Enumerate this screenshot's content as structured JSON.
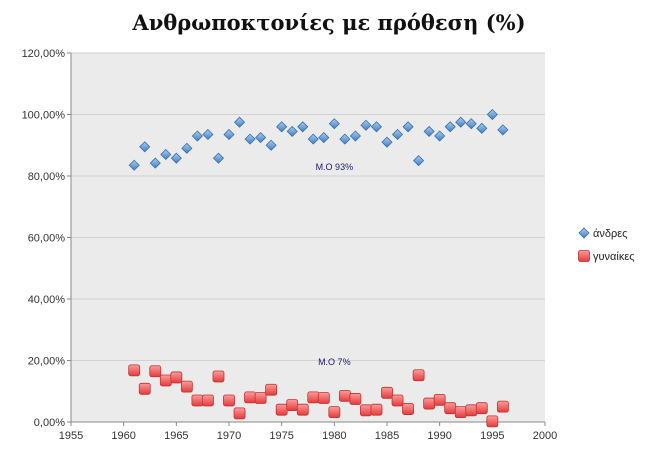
{
  "chart_data": {
    "type": "scatter",
    "title": "Ανθρωποκτονίες με πρόθεση (%)",
    "xlim": [
      1955,
      2000
    ],
    "ylim": [
      0,
      120
    ],
    "x_ticks": [
      "1955",
      "1960",
      "1965",
      "1970",
      "1975",
      "1980",
      "1985",
      "1990",
      "1995",
      "2000"
    ],
    "y_ticks": [
      "0,00%",
      "20,00%",
      "40,00%",
      "60,00%",
      "80,00%",
      "100,00%",
      "120,00%"
    ],
    "grid": true,
    "legend_position": "right",
    "series": [
      {
        "name": "άνδρες",
        "marker": "diamond",
        "color": "#5b9bd5",
        "points": [
          [
            1961,
            83.5
          ],
          [
            1962,
            89.5
          ],
          [
            1963,
            84.2
          ],
          [
            1964,
            87.0
          ],
          [
            1965,
            85.8
          ],
          [
            1966,
            89.0
          ],
          [
            1967,
            93.0
          ],
          [
            1968,
            93.5
          ],
          [
            1969,
            85.8
          ],
          [
            1970,
            93.5
          ],
          [
            1971,
            97.5
          ],
          [
            1972,
            92.0
          ],
          [
            1973,
            92.5
          ],
          [
            1974,
            90.0
          ],
          [
            1975,
            96.0
          ],
          [
            1976,
            94.5
          ],
          [
            1977,
            96.0
          ],
          [
            1978,
            92.0
          ],
          [
            1979,
            92.5
          ],
          [
            1980,
            97.0
          ],
          [
            1981,
            92.0
          ],
          [
            1982,
            93.0
          ],
          [
            1983,
            96.5
          ],
          [
            1984,
            96.0
          ],
          [
            1985,
            91.0
          ],
          [
            1986,
            93.5
          ],
          [
            1987,
            96.0
          ],
          [
            1988,
            85.0
          ],
          [
            1989,
            94.5
          ],
          [
            1990,
            93.0
          ],
          [
            1991,
            96.0
          ],
          [
            1992,
            97.5
          ],
          [
            1993,
            97.0
          ],
          [
            1994,
            95.5
          ],
          [
            1995,
            100.0
          ],
          [
            1996,
            95.0
          ]
        ]
      },
      {
        "name": "γυναίκες",
        "marker": "square",
        "color": "#f06060",
        "points": [
          [
            1961,
            16.8
          ],
          [
            1962,
            10.8
          ],
          [
            1963,
            16.5
          ],
          [
            1964,
            13.5
          ],
          [
            1965,
            14.5
          ],
          [
            1966,
            11.5
          ],
          [
            1967,
            7.0
          ],
          [
            1968,
            7.0
          ],
          [
            1969,
            14.8
          ],
          [
            1970,
            7.0
          ],
          [
            1971,
            2.8
          ],
          [
            1972,
            8.0
          ],
          [
            1973,
            7.8
          ],
          [
            1974,
            10.5
          ],
          [
            1975,
            4.0
          ],
          [
            1976,
            5.5
          ],
          [
            1977,
            4.0
          ],
          [
            1978,
            8.0
          ],
          [
            1979,
            7.8
          ],
          [
            1980,
            3.2
          ],
          [
            1981,
            8.5
          ],
          [
            1982,
            7.5
          ],
          [
            1983,
            3.8
          ],
          [
            1984,
            4.0
          ],
          [
            1985,
            9.5
          ],
          [
            1986,
            7.0
          ],
          [
            1987,
            4.2
          ],
          [
            1988,
            15.2
          ],
          [
            1989,
            6.0
          ],
          [
            1990,
            7.2
          ],
          [
            1991,
            4.5
          ],
          [
            1992,
            3.2
          ],
          [
            1993,
            3.8
          ],
          [
            1994,
            4.5
          ],
          [
            1995,
            0.2
          ],
          [
            1996,
            5.0
          ]
        ]
      }
    ],
    "annotations": [
      {
        "text": "Μ.Ο 93%",
        "x": 1980,
        "y": 82
      },
      {
        "text": "Μ.Ο 7%",
        "x": 1980,
        "y": 18.5
      }
    ]
  }
}
